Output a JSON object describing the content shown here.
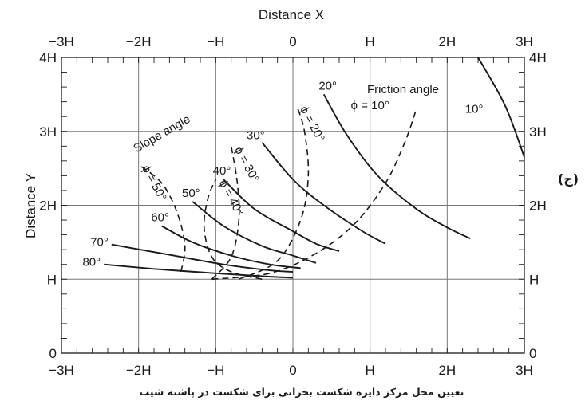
{
  "chart_data": {
    "type": "line",
    "title": "",
    "xlabel": "Distance X",
    "ylabel": "Distance Y",
    "xlim": [
      -3,
      3
    ],
    "ylim": [
      0,
      4
    ],
    "unit": "H",
    "grid": true,
    "x_ticks": [
      "−3H",
      "−2H",
      "−H",
      "0",
      "H",
      "2H",
      "3H"
    ],
    "y_ticks": [
      "0",
      "H",
      "2H",
      "3H",
      "4H"
    ],
    "slope_angle_label": "Slope angle",
    "friction_angle_label": "Friction angle",
    "slope_curves": [
      {
        "label": "10°",
        "points": [
          [
            2.4,
            4.0
          ],
          [
            2.75,
            3.35
          ],
          [
            3.0,
            2.65
          ]
        ]
      },
      {
        "label": "20°",
        "points": [
          [
            0.4,
            3.5
          ],
          [
            0.7,
            2.95
          ],
          [
            1.1,
            2.4
          ],
          [
            1.6,
            1.95
          ],
          [
            2.0,
            1.7
          ],
          [
            2.3,
            1.55
          ]
        ]
      },
      {
        "label": "30°",
        "points": [
          [
            -0.4,
            2.85
          ],
          [
            0.0,
            2.35
          ],
          [
            0.4,
            2.0
          ],
          [
            0.9,
            1.65
          ],
          [
            1.2,
            1.48
          ]
        ]
      },
      {
        "label": "40°",
        "points": [
          [
            -0.9,
            2.35
          ],
          [
            -0.5,
            1.95
          ],
          [
            0.0,
            1.65
          ],
          [
            0.3,
            1.48
          ],
          [
            0.6,
            1.38
          ]
        ]
      },
      {
        "label": "50°",
        "points": [
          [
            -1.3,
            2.05
          ],
          [
            -0.9,
            1.72
          ],
          [
            -0.4,
            1.45
          ],
          [
            0.0,
            1.32
          ],
          [
            0.3,
            1.22
          ]
        ]
      },
      {
        "label": "60°",
        "points": [
          [
            -1.7,
            1.72
          ],
          [
            -1.3,
            1.5
          ],
          [
            -0.8,
            1.32
          ],
          [
            -0.3,
            1.2
          ],
          [
            0.1,
            1.15
          ]
        ]
      },
      {
        "label": "70°",
        "points": [
          [
            -2.35,
            1.47
          ],
          [
            -1.6,
            1.33
          ],
          [
            -0.9,
            1.2
          ],
          [
            -0.3,
            1.12
          ],
          [
            0.0,
            1.1
          ]
        ]
      },
      {
        "label": "80°",
        "points": [
          [
            -2.45,
            1.2
          ],
          [
            -1.8,
            1.14
          ],
          [
            -1.0,
            1.08
          ],
          [
            -0.4,
            1.04
          ],
          [
            0.0,
            1.02
          ]
        ]
      }
    ],
    "friction_curves": [
      {
        "label": "ϕ = 10°",
        "points": [
          [
            -1.05,
            1.0
          ],
          [
            -0.3,
            1.08
          ],
          [
            0.3,
            1.35
          ],
          [
            0.8,
            1.75
          ],
          [
            1.2,
            2.3
          ],
          [
            1.45,
            2.85
          ],
          [
            1.6,
            3.3
          ]
        ]
      },
      {
        "label": "ϕ = 20°",
        "points": [
          [
            -0.7,
            1.0
          ],
          [
            -0.2,
            1.25
          ],
          [
            0.1,
            1.8
          ],
          [
            0.2,
            2.4
          ],
          [
            0.15,
            3.0
          ],
          [
            0.05,
            3.35
          ]
        ]
      },
      {
        "label": "ϕ = 30°",
        "points": [
          [
            -1.05,
            1.0
          ],
          [
            -0.8,
            1.3
          ],
          [
            -0.7,
            1.8
          ],
          [
            -0.72,
            2.3
          ],
          [
            -0.8,
            2.8
          ]
        ]
      },
      {
        "label": "ϕ = 40°",
        "points": [
          [
            -0.4,
            1.0
          ],
          [
            -0.8,
            1.1
          ],
          [
            -1.05,
            1.3
          ],
          [
            -1.15,
            1.7
          ],
          [
            -1.1,
            2.1
          ],
          [
            -1.0,
            2.35
          ]
        ]
      },
      {
        "label": "ϕ = 50°",
        "points": [
          [
            -1.45,
            1.1
          ],
          [
            -1.4,
            1.45
          ],
          [
            -1.5,
            1.9
          ],
          [
            -1.7,
            2.3
          ],
          [
            -2.0,
            2.55
          ]
        ]
      }
    ],
    "side_label": "(ج)",
    "caption": "تعیین محل مرکز دایره شکست بحرانی برای شکست در پاشنه شیب"
  }
}
